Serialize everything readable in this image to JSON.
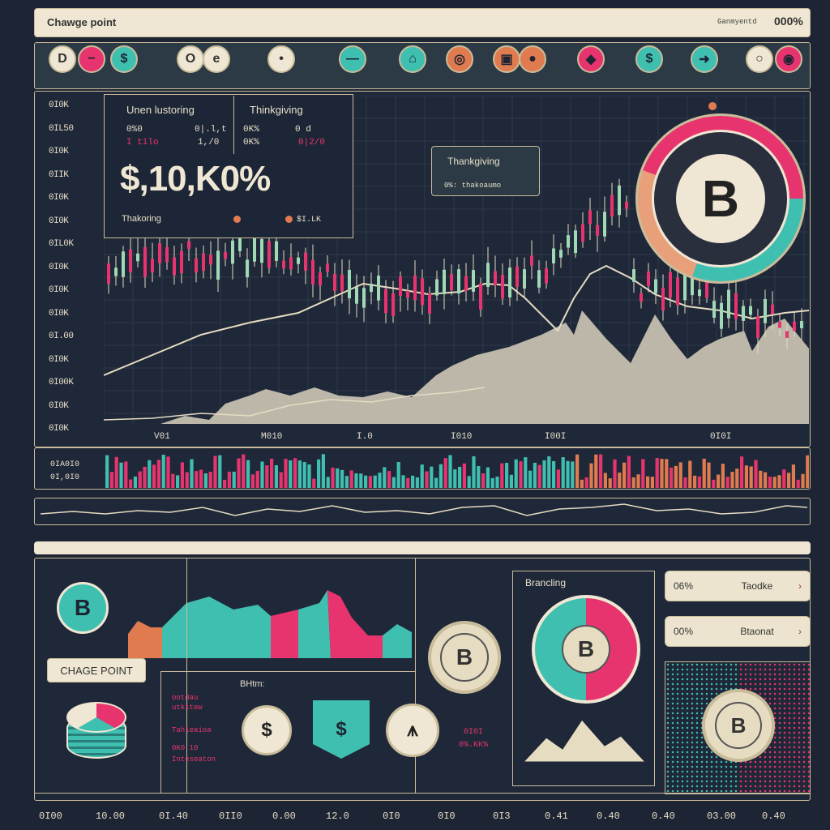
{
  "app": {
    "title": "Chawge point",
    "right_label": "Ganmyentd",
    "right_value": "000%"
  },
  "toolbar": {
    "buttons": [
      {
        "name": "toolbar-d-button",
        "glyph": "D"
      },
      {
        "name": "toolbar-minus-button",
        "glyph": "−"
      },
      {
        "name": "toolbar-dollar-button",
        "glyph": "$"
      },
      {
        "name": "toolbar-o-button",
        "glyph": "O"
      },
      {
        "name": "toolbar-e-button",
        "glyph": "e"
      },
      {
        "name": "toolbar-pin-button",
        "glyph": "•"
      },
      {
        "name": "toolbar-link-button",
        "glyph": "—"
      },
      {
        "name": "toolbar-home-button",
        "glyph": "⌂"
      },
      {
        "name": "toolbar-target-button",
        "glyph": "◎"
      },
      {
        "name": "toolbar-square-button",
        "glyph": "▣"
      },
      {
        "name": "toolbar-record-button",
        "glyph": "●"
      },
      {
        "name": "toolbar-diamond-button",
        "glyph": "◆"
      },
      {
        "name": "toolbar-dollar2-button",
        "glyph": "$"
      },
      {
        "name": "toolbar-arrow-button",
        "glyph": "➜"
      },
      {
        "name": "toolbar-circle-button",
        "glyph": "○"
      },
      {
        "name": "toolbar-rec2-button",
        "glyph": "◉"
      }
    ]
  },
  "main_chart": {
    "panel_left_title": "Unen lustoring",
    "panel_right_title": "Thinkgiving",
    "stat_a1": "0%0",
    "stat_a2": "I tilo",
    "stat_a3": "0|.l,t",
    "stat_a4": "1,/0",
    "stat_b1": "0K%",
    "stat_b2": "0 d",
    "stat_b3": "0K%",
    "stat_b4": "0|2/0",
    "big_value": "$,10,K0%",
    "sub_label": "Thakoring",
    "sub_value": "$I.LK",
    "tooltip_title": "Thankgiving",
    "tooltip_sub": "0%: thakoaumo",
    "y_ticks": [
      "0I0K",
      "0IL50",
      "0I0K",
      "0IIK",
      "0I0K",
      "0I0K",
      "0IL0K",
      "0I0K",
      "0I0K",
      "0I0K",
      "0I.00",
      "0I0K",
      "0I00K",
      "0I0K",
      "0I0K"
    ],
    "x_ticks": [
      "V01",
      "M010",
      "I.0",
      "I010",
      "I00I",
      "0I0I"
    ]
  },
  "volume": {
    "label1": "0IA0I0",
    "label2": "0I,0I0"
  },
  "bottom": {
    "change_point_label": "CHAGE POINT",
    "bhtm_label": "BHtm:",
    "left_notes": [
      "ootdau",
      "utkitew",
      "Tahleaioa",
      "0K0 10",
      "Inteseaton"
    ],
    "mid_note1": "0I0I",
    "mid_note2": "0%.KK%",
    "branching_label": "Brancling",
    "side_btn1": {
      "value": "06%",
      "label": "Taodke"
    },
    "side_btn2": {
      "value": "00%",
      "label": "Btaonat"
    },
    "x_ticks": [
      "0I00",
      "10.00",
      "0I.40",
      "0II0",
      "0.00",
      "12.0",
      "0I0",
      "0I0",
      "0I3",
      "0.41",
      "0.40",
      "0.40",
      "03.00",
      "0.40"
    ]
  },
  "colors": {
    "teal": "#3fbfb0",
    "pink": "#e8346e",
    "cream": "#efe7d3",
    "bg": "#1d2433",
    "gold": "#c9bc9a"
  }
}
